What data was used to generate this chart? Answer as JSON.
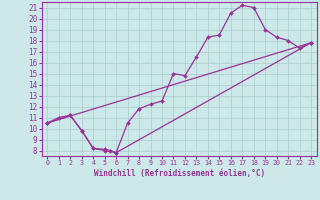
{
  "xlabel": "Windchill (Refroidissement éolien,°C)",
  "bg_color": "#cce8e8",
  "line_color": "#993399",
  "grid_color": "#aacccc",
  "xlim": [
    -0.5,
    23.5
  ],
  "ylim": [
    7.5,
    21.5
  ],
  "xticks": [
    0,
    1,
    2,
    3,
    4,
    5,
    6,
    7,
    8,
    9,
    10,
    11,
    12,
    13,
    14,
    15,
    16,
    17,
    18,
    19,
    20,
    21,
    22,
    23
  ],
  "yticks": [
    8,
    9,
    10,
    11,
    12,
    13,
    14,
    15,
    16,
    17,
    18,
    19,
    20,
    21
  ],
  "line1_x": [
    0,
    1,
    2,
    3,
    4,
    5,
    6,
    7,
    8,
    9,
    10,
    11,
    12,
    13,
    14,
    15,
    16,
    17,
    18,
    19,
    20,
    21,
    22,
    23
  ],
  "line1_y": [
    10.5,
    11.0,
    11.2,
    9.8,
    8.2,
    8.0,
    7.8,
    10.5,
    11.8,
    12.2,
    12.5,
    15.0,
    14.8,
    16.5,
    18.3,
    18.5,
    20.5,
    21.2,
    21.0,
    19.0,
    18.3,
    18.0,
    17.3,
    17.8
  ],
  "line2_x": [
    0,
    2,
    3,
    4,
    5,
    5.5,
    6.0,
    23
  ],
  "line2_y": [
    10.5,
    11.2,
    9.8,
    8.2,
    8.1,
    8.0,
    7.8,
    17.8
  ],
  "line3_x": [
    0,
    23
  ],
  "line3_y": [
    10.5,
    17.8
  ],
  "markersize": 2.0,
  "linewidth": 0.9,
  "x_tick_fontsize": 4.8,
  "y_tick_fontsize": 5.5,
  "xlabel_fontsize": 5.5
}
